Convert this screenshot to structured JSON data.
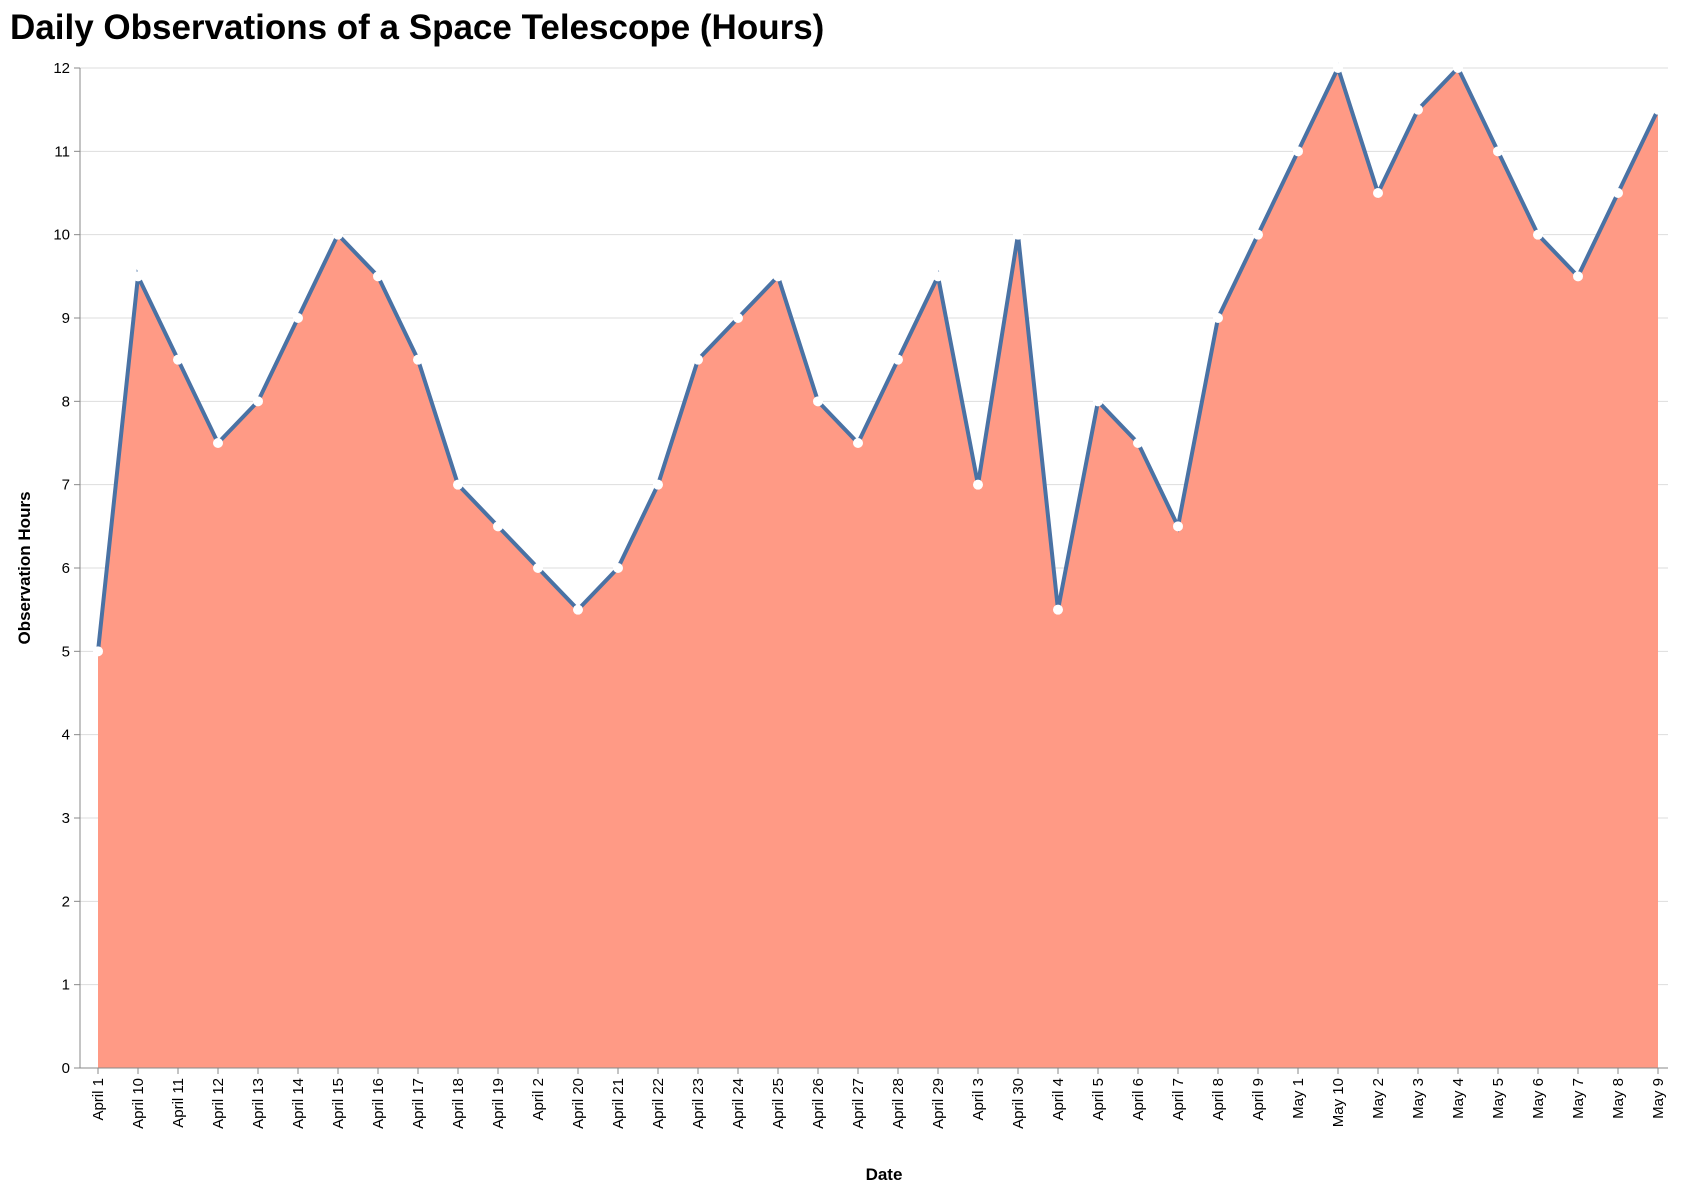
{
  "chart_data": {
    "type": "area",
    "title": "Daily Observations of a Space Telescope (Hours)",
    "xlabel": "Date",
    "ylabel": "Observation Hours",
    "ylim": [
      0,
      12
    ],
    "yticks": [
      "0",
      "1",
      "2",
      "3",
      "4",
      "5",
      "6",
      "7",
      "8",
      "9",
      "10",
      "11",
      "12"
    ],
    "grid": true,
    "categories": [
      "April 1",
      "April 10",
      "April 11",
      "April 12",
      "April 13",
      "April 14",
      "April 15",
      "April 16",
      "April 17",
      "April 18",
      "April 19",
      "April 2",
      "April 20",
      "April 21",
      "April 22",
      "April 23",
      "April 24",
      "April 25",
      "April 26",
      "April 27",
      "April 28",
      "April 29",
      "April 3",
      "April 30",
      "April 4",
      "April 5",
      "April 6",
      "April 7",
      "April 8",
      "April 9",
      "May 1",
      "May 10",
      "May 2",
      "May 3",
      "May 4",
      "May 5",
      "May 6",
      "May 7",
      "May 8",
      "May 9"
    ],
    "values": [
      5,
      9.5,
      8.5,
      7.5,
      8,
      9,
      10,
      9.5,
      8.5,
      7,
      6.5,
      6,
      5.5,
      6,
      7,
      8.5,
      9,
      9.5,
      8,
      7.5,
      8.5,
      9.5,
      7,
      10,
      5.5,
      8,
      7.5,
      6.5,
      9,
      10,
      11,
      12,
      10.5,
      11.5,
      12,
      11,
      10,
      9.5,
      10.5,
      11.5
    ],
    "colors": {
      "area": "#ff9a85",
      "line": "#4a72a4",
      "point": "#ffffff",
      "grid": "#dddddd",
      "axis": "#888888"
    }
  }
}
